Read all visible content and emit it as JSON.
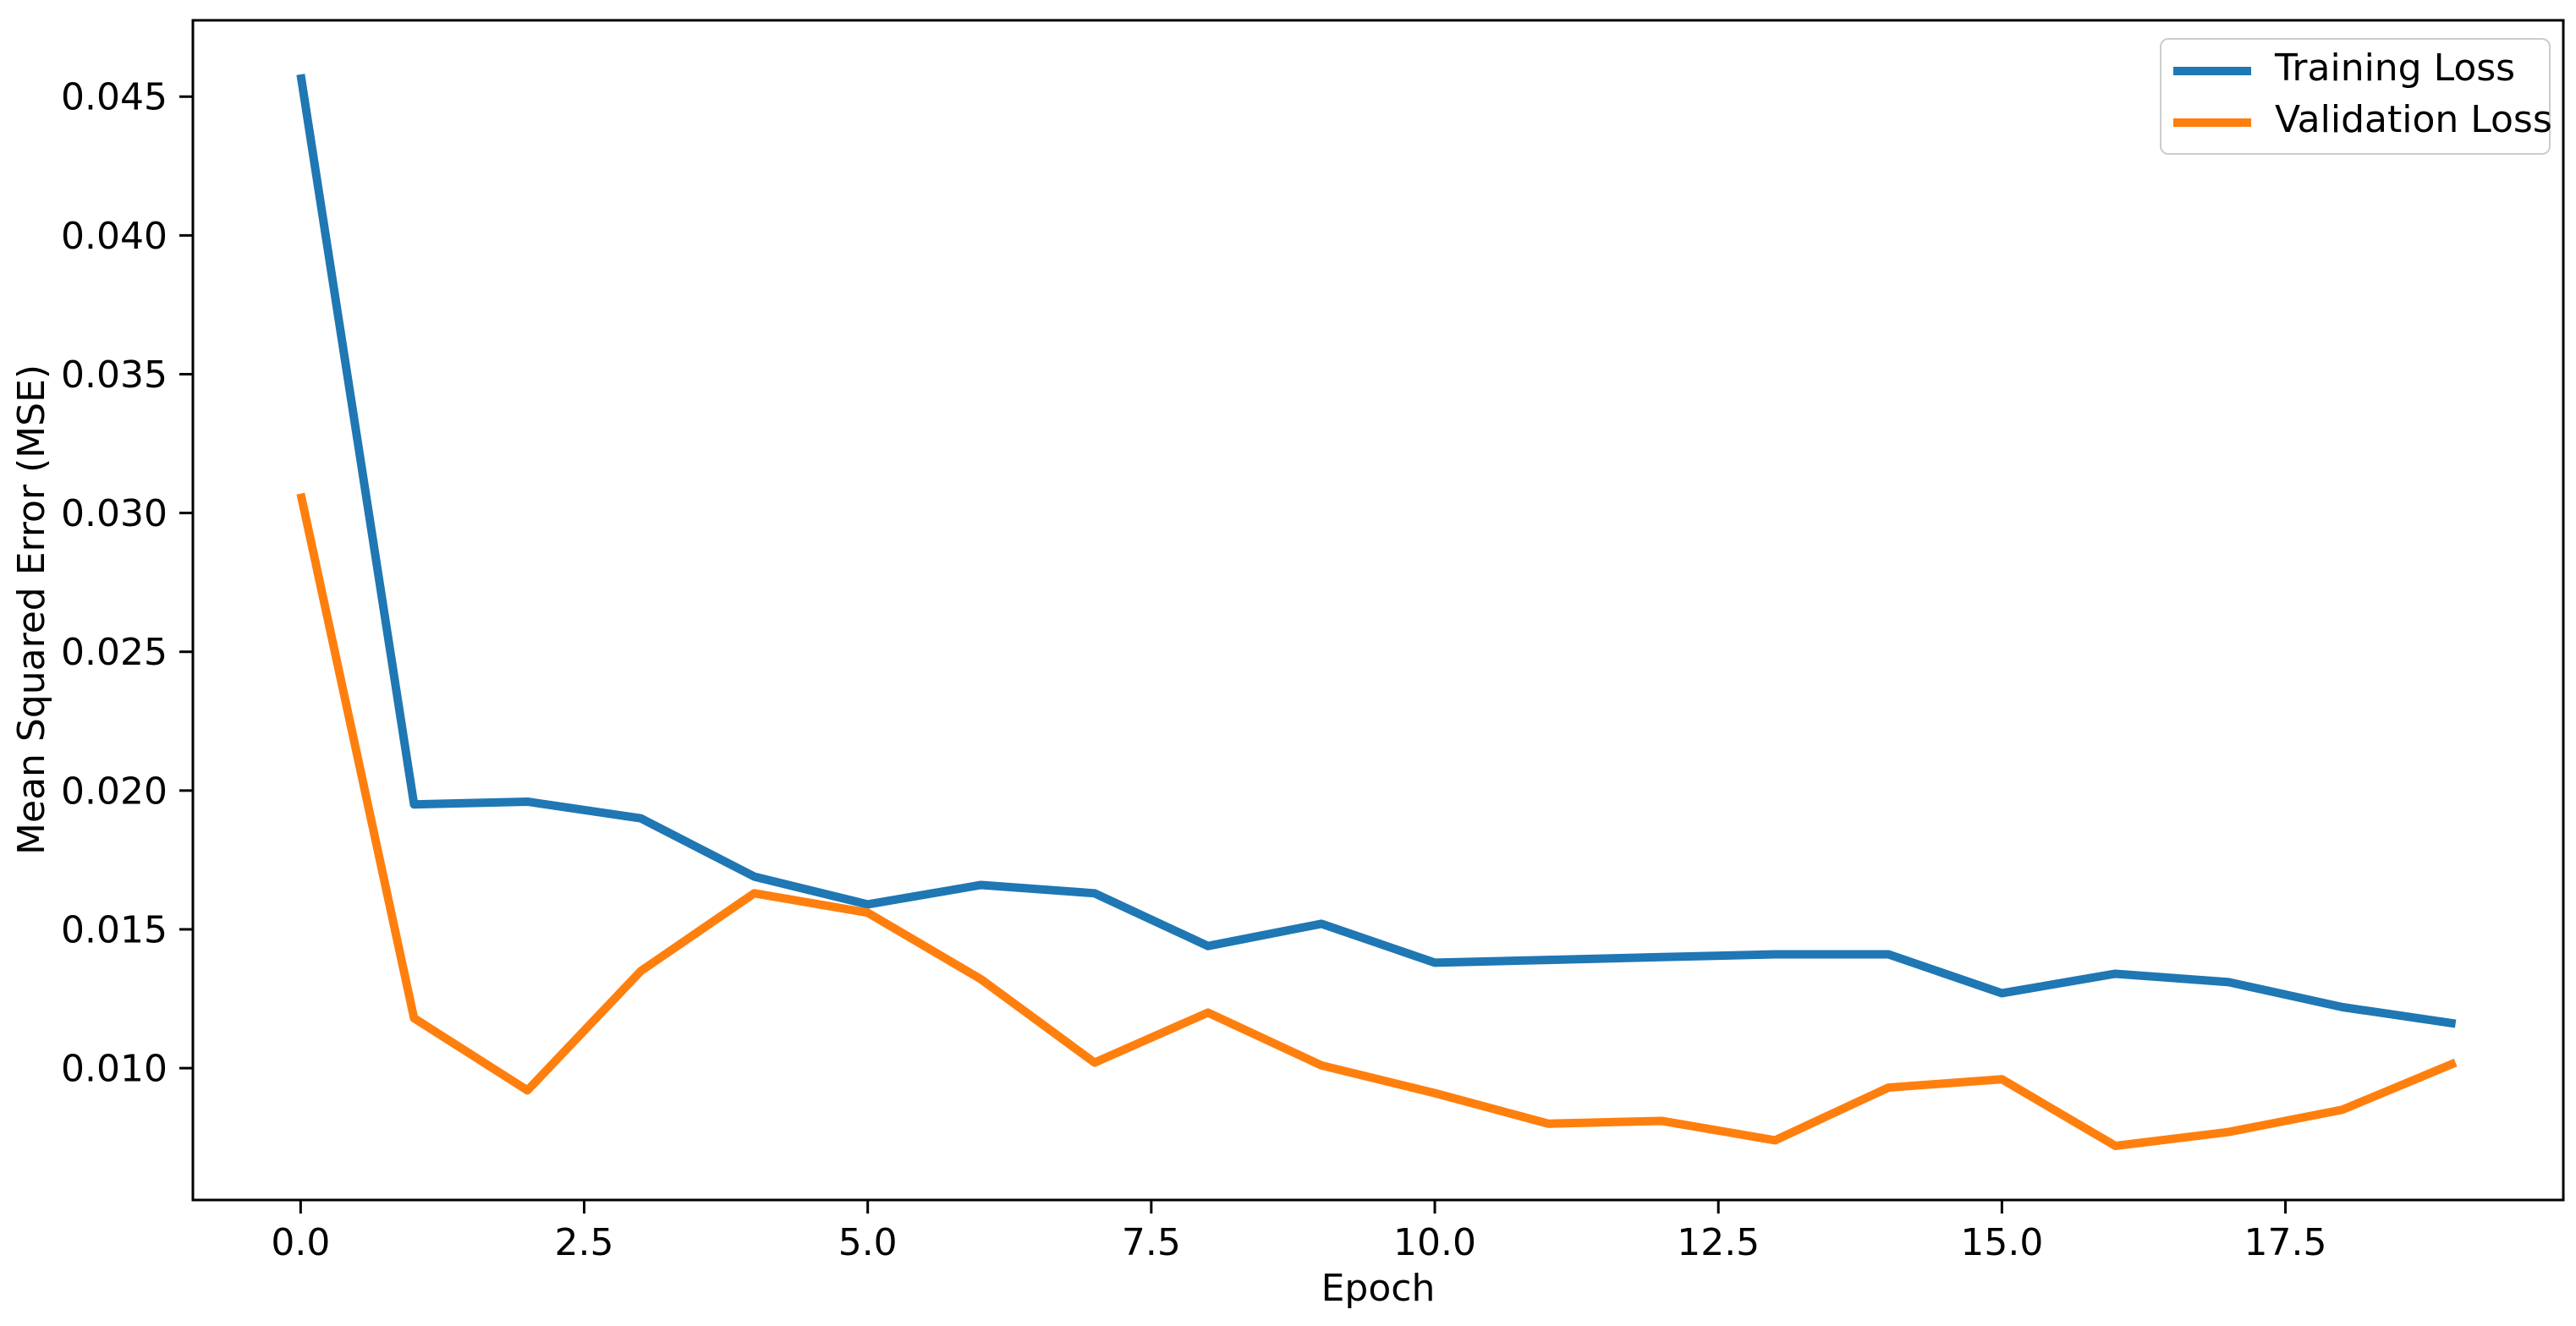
{
  "chart_data": {
    "type": "line",
    "x": [
      0,
      1,
      2,
      3,
      4,
      5,
      6,
      7,
      8,
      9,
      10,
      11,
      12,
      13,
      14,
      15,
      16,
      17,
      18,
      19
    ],
    "series": [
      {
        "name": "Training Loss",
        "color": "#1f77b4",
        "values": [
          0.0458,
          0.0195,
          0.0196,
          0.019,
          0.0169,
          0.0159,
          0.0166,
          0.0163,
          0.0144,
          0.0152,
          0.0138,
          0.0139,
          0.014,
          0.0141,
          0.0141,
          0.0127,
          0.0134,
          0.0131,
          0.0122,
          0.0116
        ]
      },
      {
        "name": "Validation Loss",
        "color": "#ff7f0e",
        "values": [
          0.0307,
          0.0118,
          0.0092,
          0.0135,
          0.0163,
          0.0156,
          0.0132,
          0.0102,
          0.012,
          0.0101,
          0.0091,
          0.008,
          0.0081,
          0.0074,
          0.0093,
          0.0096,
          0.0072,
          0.0077,
          0.0085,
          0.0102
        ]
      }
    ],
    "title": "",
    "xlabel": "Epoch",
    "ylabel": "Mean Squared Error (MSE)",
    "xlim": [
      -0.95,
      19.95
    ],
    "ylim": [
      0.00525,
      0.04775
    ],
    "xticks": {
      "values": [
        0,
        2.5,
        5,
        7.5,
        10,
        12.5,
        15,
        17.5
      ],
      "labels": [
        "0.0",
        "2.5",
        "5.0",
        "7.5",
        "10.0",
        "12.5",
        "15.0",
        "17.5"
      ]
    },
    "yticks": {
      "values": [
        0.01,
        0.015,
        0.02,
        0.025,
        0.03,
        0.035,
        0.04,
        0.045
      ],
      "labels": [
        "0.010",
        "0.015",
        "0.020",
        "0.025",
        "0.030",
        "0.035",
        "0.040",
        "0.045"
      ]
    },
    "grid": false,
    "legend_position": "upper right",
    "colors": {
      "spine": "#000000",
      "text": "#000000",
      "legend_border": "#cccccc",
      "background": "#ffffff"
    }
  }
}
